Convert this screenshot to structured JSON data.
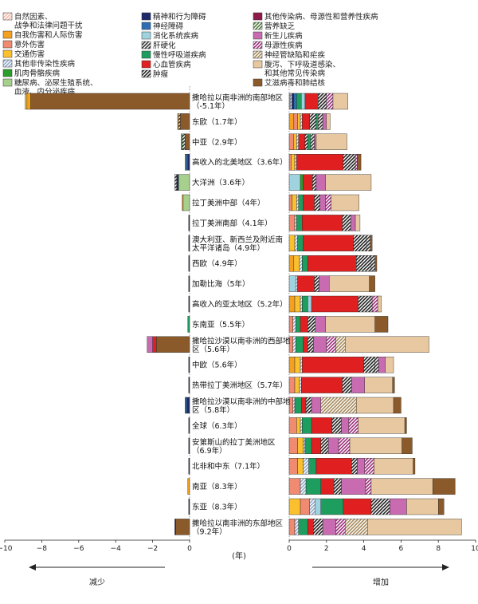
{
  "chart_data": {
    "type": "bar",
    "title": "",
    "xlabel": "(年)",
    "left_xlim": [
      -10,
      0
    ],
    "right_xlim": [
      0,
      10
    ],
    "x_ticks_left": [
      -10,
      -8,
      -6,
      -4,
      -2,
      0
    ],
    "x_ticks_right": [
      0,
      2,
      4,
      6,
      8,
      10
    ],
    "decrease_label": "减少",
    "increase_label": "增加",
    "grid": false,
    "legend": [
      {
        "key": "nat",
        "name": "自然因素、战争和法律问题干扰",
        "color": "#f6b7a8",
        "pattern": "hatch"
      },
      {
        "key": "self",
        "name": "自我伤害和人际伤害",
        "color": "#f4a020",
        "pattern": "solid"
      },
      {
        "key": "unint",
        "name": "意外伤害",
        "color": "#f08a70",
        "pattern": "solid"
      },
      {
        "key": "traffic",
        "name": "交通伤害",
        "color": "#fbc02d",
        "pattern": "solid"
      },
      {
        "key": "oncd",
        "name": "其他非传染性疾病",
        "color": "#8fa8c8",
        "pattern": "hatch"
      },
      {
        "key": "msk",
        "name": "肌肉骨骼疾病",
        "color": "#2a9d2a",
        "pattern": "solid"
      },
      {
        "key": "diab",
        "name": "糖尿病、泌尿生殖系统、血液、内分泌疾病",
        "color": "#a8d08d",
        "pattern": "solid"
      },
      {
        "key": "mental",
        "name": "精神和行为障碍",
        "color": "#1f2a6b",
        "pattern": "solid"
      },
      {
        "key": "neuro",
        "name": "神经障碍",
        "color": "#2e6db4",
        "pattern": "solid"
      },
      {
        "key": "digest",
        "name": "消化系统疾病",
        "color": "#9fd3e0",
        "pattern": "solid"
      },
      {
        "key": "cirr",
        "name": "肝硬化",
        "color": "#333333",
        "pattern": "hatch"
      },
      {
        "key": "resp",
        "name": "慢性呼吸道疾病",
        "color": "#1e9e5e",
        "pattern": "solid"
      },
      {
        "key": "cvd",
        "name": "心血管疾病",
        "color": "#e02020",
        "pattern": "solid"
      },
      {
        "key": "neo",
        "name": "肿瘤",
        "color": "#222222",
        "pattern": "hatch"
      },
      {
        "key": "ocomm",
        "name": "其他传染病、母源性和营养性疾病",
        "color": "#8e1b4a",
        "pattern": "solid"
      },
      {
        "key": "nutdef",
        "name": "营养缺乏",
        "color": "#4e7a3a",
        "pattern": "hatch"
      },
      {
        "key": "neonatal",
        "name": "新生儿疾病",
        "color": "#c86bb0",
        "pattern": "solid"
      },
      {
        "key": "maternal",
        "name": "母源性疾病",
        "color": "#9b2d7a",
        "pattern": "hatch"
      },
      {
        "key": "ntd",
        "name": "神经管缺陷和疟疾",
        "color": "#a58a5a",
        "pattern": "hatch"
      },
      {
        "key": "diar",
        "name": "腹泻、下呼吸道感染、和其他常见传染病",
        "color": "#e8c8a0",
        "pattern": "solid"
      },
      {
        "key": "hiv",
        "name": "艾滋病毒和肺结核",
        "color": "#8b5a2b",
        "pattern": "solid"
      }
    ],
    "rows": [
      {
        "label": "撒哈拉以南非洲的南部地区（-5.1年）",
        "neg": [
          [
            "hiv",
            -8.6
          ],
          [
            "self",
            -0.2
          ],
          [
            "traffic",
            -0.1
          ]
        ],
        "pos": [
          [
            "unint",
            0.05
          ],
          [
            "oncd",
            0.1
          ],
          [
            "mental",
            0.1
          ],
          [
            "neuro",
            0.15
          ],
          [
            "resp",
            0.25
          ],
          [
            "digest",
            0.2
          ],
          [
            "cvd",
            0.7
          ],
          [
            "neo",
            0.45
          ],
          [
            "maternal",
            0.35
          ],
          [
            "diar",
            0.8
          ]
        ]
      },
      {
        "label": "东欧（1.7年）",
        "neg": [
          [
            "hiv",
            -0.5
          ],
          [
            "cirr",
            -0.1
          ],
          [
            "self",
            -0.05
          ]
        ],
        "pos": [
          [
            "self",
            0.25
          ],
          [
            "unint",
            0.2
          ],
          [
            "traffic",
            0.15
          ],
          [
            "oncd",
            0.1
          ],
          [
            "cvd",
            0.4
          ],
          [
            "neo",
            0.35
          ],
          [
            "resp",
            0.1
          ],
          [
            "cirr",
            0.25
          ],
          [
            "neonatal",
            0.2
          ],
          [
            "diar",
            0.2
          ]
        ]
      },
      {
        "label": "中亚（2.9年）",
        "neg": [
          [
            "hiv",
            -0.25
          ],
          [
            "cirr",
            -0.15
          ],
          [
            "msk",
            -0.05
          ]
        ],
        "pos": [
          [
            "unint",
            0.25
          ],
          [
            "traffic",
            0.15
          ],
          [
            "oncd",
            0.1
          ],
          [
            "cvd",
            0.35
          ],
          [
            "neo",
            0.15
          ],
          [
            "resp",
            0.15
          ],
          [
            "cirr",
            0.2
          ],
          [
            "neonatal",
            0.1
          ],
          [
            "diar",
            1.65
          ]
        ]
      },
      {
        "label": "高收入的北美地区（3.6年）",
        "neg": [
          [
            "mental",
            -0.1
          ],
          [
            "neuro",
            -0.1
          ],
          [
            "self",
            -0.05
          ]
        ],
        "pos": [
          [
            "unint",
            0.1
          ],
          [
            "traffic",
            0.2
          ],
          [
            "oncd",
            0.1
          ],
          [
            "cvd",
            2.5
          ],
          [
            "neo",
            0.65
          ],
          [
            "maternal",
            0.1
          ],
          [
            "hiv",
            0.2
          ]
        ]
      },
      {
        "label": "大洋洲（3.6年）",
        "neg": [
          [
            "diab",
            -0.6
          ],
          [
            "mental",
            -0.1
          ],
          [
            "cirr",
            -0.1
          ]
        ],
        "pos": [
          [
            "digest",
            0.6
          ],
          [
            "msk",
            0.15
          ],
          [
            "cvd",
            0.5
          ],
          [
            "neo",
            0.2
          ],
          [
            "neonatal",
            0.5
          ],
          [
            "diar",
            2.45
          ]
        ]
      },
      {
        "label": "拉丁美洲中部（4年）",
        "neg": [
          [
            "diab",
            -0.35
          ],
          [
            "self",
            -0.05
          ]
        ],
        "pos": [
          [
            "unint",
            0.15
          ],
          [
            "traffic",
            0.25
          ],
          [
            "oncd",
            0.1
          ],
          [
            "resp",
            0.25
          ],
          [
            "cvd",
            0.6
          ],
          [
            "neo",
            0.3
          ],
          [
            "neonatal",
            0.3
          ],
          [
            "maternal",
            0.3
          ],
          [
            "diar",
            1.5
          ]
        ]
      },
      {
        "label": "拉丁美洲南部（4.1年）",
        "neg": [
          [
            "mental",
            -0.05
          ]
        ],
        "pos": [
          [
            "unint",
            0.3
          ],
          [
            "oncd",
            0.1
          ],
          [
            "resp",
            0.3
          ],
          [
            "cvd",
            2.15
          ],
          [
            "neo",
            0.45
          ],
          [
            "neonatal",
            0.25
          ],
          [
            "diar",
            0.25
          ]
        ]
      },
      {
        "label": "澳大利亚、新西兰及附近南太平洋诸岛（4.9年）",
        "neg": [
          [
            "mental",
            -0.05
          ]
        ],
        "pos": [
          [
            "traffic",
            0.3
          ],
          [
            "oncd",
            0.15
          ],
          [
            "resp",
            0.3
          ],
          [
            "cvd",
            2.7
          ],
          [
            "neo",
            0.7
          ],
          [
            "cirr",
            0.2
          ],
          [
            "hiv",
            0.1
          ]
        ]
      },
      {
        "label": "西欧（4.9年）",
        "neg": [
          [
            "mental",
            -0.05
          ]
        ],
        "pos": [
          [
            "self",
            0.25
          ],
          [
            "traffic",
            0.3
          ],
          [
            "oncd",
            0.15
          ],
          [
            "resp",
            0.3
          ],
          [
            "cvd",
            2.6
          ],
          [
            "neo",
            0.8
          ],
          [
            "cirr",
            0.2
          ],
          [
            "hiv",
            0.1
          ]
        ]
      },
      {
        "label": "加勒比海（5年）",
        "neg": [
          [
            "mental",
            -0.05
          ]
        ],
        "pos": [
          [
            "digest",
            0.35
          ],
          [
            "oncd",
            0.1
          ],
          [
            "cvd",
            0.9
          ],
          [
            "neo",
            0.25
          ],
          [
            "neonatal",
            0.55
          ],
          [
            "diar",
            2.15
          ],
          [
            "hiv",
            0.3
          ]
        ]
      },
      {
        "label": "高收入的亚太地区（5.2年）",
        "neg": [
          [
            "mental",
            -0.05
          ]
        ],
        "pos": [
          [
            "self",
            0.3
          ],
          [
            "traffic",
            0.3
          ],
          [
            "oncd",
            0.1
          ],
          [
            "resp",
            0.3
          ],
          [
            "digest",
            0.2
          ],
          [
            "cvd",
            2.5
          ],
          [
            "neo",
            0.75
          ],
          [
            "maternal",
            0.3
          ],
          [
            "diar",
            0.2
          ]
        ]
      },
      {
        "label": "东南亚（5.5年）",
        "neg": [
          [
            "resp",
            -0.1
          ]
        ],
        "pos": [
          [
            "unint",
            0.2
          ],
          [
            "oncd",
            0.15
          ],
          [
            "resp",
            0.25
          ],
          [
            "cvd",
            0.4
          ],
          [
            "neo",
            0.4
          ],
          [
            "neonatal",
            0.55
          ],
          [
            "diar",
            2.65
          ],
          [
            "hiv",
            0.7
          ]
        ]
      },
      {
        "label": "撒哈拉沙漠以南非洲的西部地区（5.6年）",
        "neg": [
          [
            "hiv",
            -1.8
          ],
          [
            "cvd",
            -0.2
          ],
          [
            "neonatal",
            -0.3
          ]
        ],
        "pos": [
          [
            "unint",
            0.2
          ],
          [
            "oncd",
            0.15
          ],
          [
            "resp",
            0.4
          ],
          [
            "cvd",
            0.25
          ],
          [
            "neo",
            0.3
          ],
          [
            "neonatal",
            0.7
          ],
          [
            "maternal",
            0.5
          ],
          [
            "ntd",
            0.5
          ],
          [
            "diar",
            4.5
          ]
        ]
      },
      {
        "label": "中欧（5.6年）",
        "neg": [
          [
            "mental",
            -0.05
          ]
        ],
        "pos": [
          [
            "self",
            0.3
          ],
          [
            "traffic",
            0.3
          ],
          [
            "oncd",
            0.1
          ],
          [
            "cvd",
            3.3
          ],
          [
            "neo",
            0.6
          ],
          [
            "cirr",
            0.2
          ],
          [
            "neonatal",
            0.35
          ],
          [
            "diar",
            0.45
          ]
        ]
      },
      {
        "label": "热带拉丁美洲地区（5.7年）",
        "neg": [
          [
            "mental",
            -0.05
          ]
        ],
        "pos": [
          [
            "unint",
            0.3
          ],
          [
            "traffic",
            0.25
          ],
          [
            "oncd",
            0.1
          ],
          [
            "cvd",
            2.2
          ],
          [
            "neo",
            0.5
          ],
          [
            "neonatal",
            0.7
          ],
          [
            "diar",
            1.5
          ],
          [
            "hiv",
            0.1
          ]
        ]
      },
      {
        "label": "撒哈拉沙漠以南非洲的中部地区（5.8年）",
        "neg": [
          [
            "mental",
            -0.15
          ],
          [
            "neuro",
            -0.1
          ]
        ],
        "pos": [
          [
            "unint",
            0.2
          ],
          [
            "oncd",
            0.1
          ],
          [
            "resp",
            0.35
          ],
          [
            "cvd",
            0.25
          ],
          [
            "neo",
            0.3
          ],
          [
            "neonatal",
            0.5
          ],
          [
            "ntd",
            1.9
          ],
          [
            "diar",
            2.0
          ],
          [
            "hiv",
            0.4
          ]
        ]
      },
      {
        "label": "全球（6.3年）",
        "neg": [
          [
            "mental",
            -0.05
          ]
        ],
        "pos": [
          [
            "unint",
            0.4
          ],
          [
            "traffic",
            0.2
          ],
          [
            "oncd",
            0.1
          ],
          [
            "resp",
            0.5
          ],
          [
            "cvd",
            1.1
          ],
          [
            "neo",
            0.5
          ],
          [
            "neonatal",
            0.4
          ],
          [
            "maternal",
            0.5
          ],
          [
            "diar",
            2.5
          ],
          [
            "hiv",
            0.1
          ]
        ]
      },
      {
        "label": "安第斯山的拉丁美洲地区（6.9年）",
        "neg": [
          [
            "mental",
            -0.05
          ]
        ],
        "pos": [
          [
            "unint",
            0.45
          ],
          [
            "traffic",
            0.3
          ],
          [
            "oncd",
            0.1
          ],
          [
            "resp",
            0.35
          ],
          [
            "cvd",
            0.5
          ],
          [
            "neo",
            0.4
          ],
          [
            "neonatal",
            0.55
          ],
          [
            "maternal",
            0.6
          ],
          [
            "diar",
            2.8
          ],
          [
            "hiv",
            0.55
          ]
        ]
      },
      {
        "label": "北非和中东（7.1年）",
        "neg": [
          [
            "mental",
            -0.05
          ]
        ],
        "pos": [
          [
            "unint",
            0.45
          ],
          [
            "traffic",
            0.3
          ],
          [
            "oncd",
            0.3
          ],
          [
            "resp",
            0.4
          ],
          [
            "cvd",
            1.9
          ],
          [
            "neo",
            0.3
          ],
          [
            "neonatal",
            0.4
          ],
          [
            "maternal",
            0.5
          ],
          [
            "diar",
            2.1
          ],
          [
            "hiv",
            0.1
          ]
        ]
      },
      {
        "label": "南亚（8.3年）",
        "neg": [
          [
            "self",
            -0.1
          ]
        ],
        "pos": [
          [
            "unint",
            0.6
          ],
          [
            "oncd",
            0.3
          ],
          [
            "resp",
            0.8
          ],
          [
            "cvd",
            0.7
          ],
          [
            "neo",
            0.4
          ],
          [
            "neonatal",
            1.3
          ],
          [
            "maternal",
            0.3
          ],
          [
            "diar",
            3.3
          ],
          [
            "hiv",
            1.2
          ]
        ]
      },
      {
        "label": "东亚（8.3年）",
        "neg": [
          [
            "mental",
            -0.05
          ]
        ],
        "pos": [
          [
            "traffic",
            0.6
          ],
          [
            "unint",
            0.5
          ],
          [
            "oncd",
            0.3
          ],
          [
            "digest",
            0.3
          ],
          [
            "resp",
            1.2
          ],
          [
            "cvd",
            1.5
          ],
          [
            "neo",
            1.0
          ],
          [
            "neonatal",
            0.9
          ],
          [
            "diar",
            1.7
          ],
          [
            "hiv",
            0.3
          ]
        ]
      },
      {
        "label": "撒哈拉以南非洲的东部地区（9.2年）",
        "neg": [
          [
            "hiv",
            -0.75
          ],
          [
            "mental",
            -0.05
          ]
        ],
        "pos": [
          [
            "unint",
            0.3
          ],
          [
            "oncd",
            0.2
          ],
          [
            "resp",
            0.5
          ],
          [
            "cvd",
            0.3
          ],
          [
            "neo",
            0.5
          ],
          [
            "neonatal",
            0.7
          ],
          [
            "maternal",
            0.5
          ],
          [
            "ntd",
            1.2
          ],
          [
            "diar",
            5.05
          ]
        ]
      }
    ]
  }
}
